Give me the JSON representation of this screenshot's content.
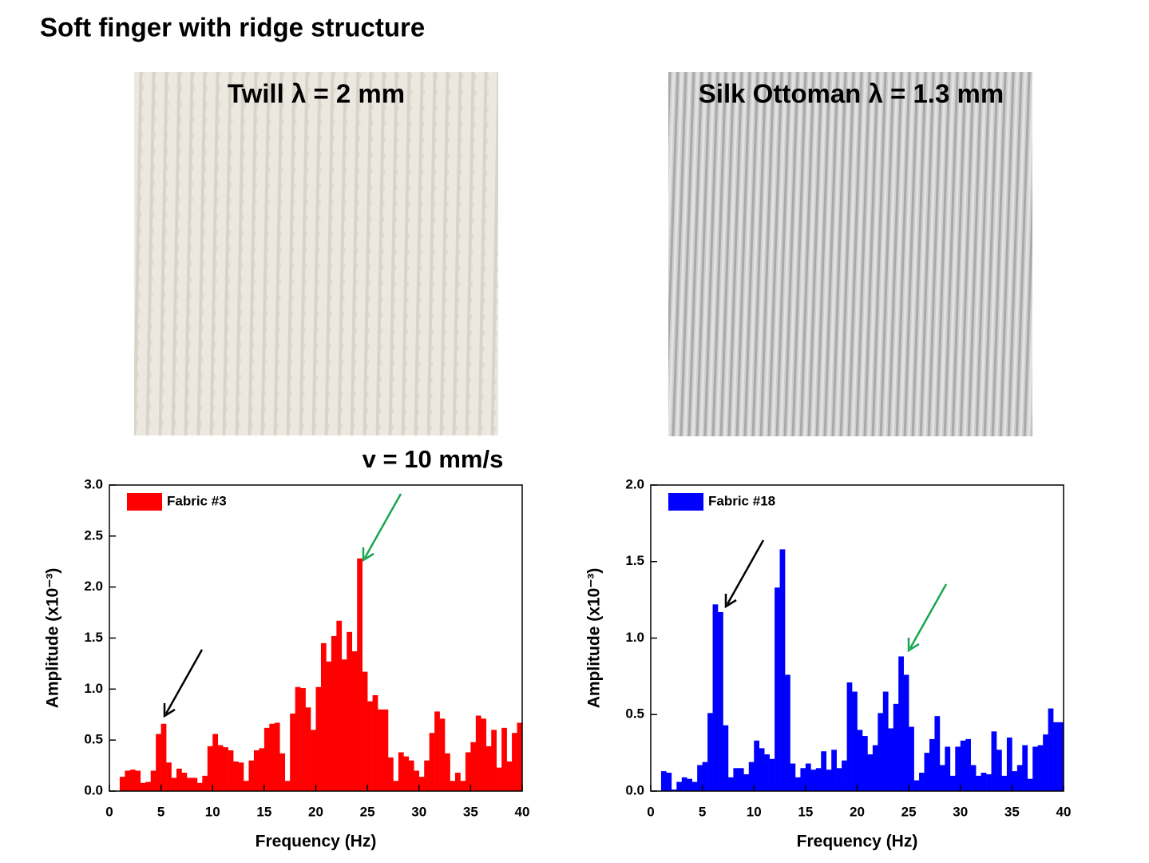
{
  "title": "Soft finger with ridge structure",
  "photos": [
    {
      "label": "Twill λ = 2 mm"
    },
    {
      "label": "Silk Ottoman λ = 1.3 mm"
    }
  ],
  "speed_label": "v = 10 mm/s",
  "chart_data": [
    {
      "type": "histogram",
      "xlabel": "Frequency (Hz)",
      "ylabel": "Amplitude (x10⁻³)",
      "series": [
        {
          "name": "Fabric #3",
          "color": "#ff0000"
        }
      ],
      "bins": [
        1,
        1.5,
        2,
        2.5,
        3,
        3.5,
        4,
        4.5,
        5,
        5.5,
        6,
        6.5,
        7,
        7.5,
        8,
        8.5,
        9,
        9.5,
        10,
        10.5,
        11,
        11.5,
        12,
        12.5,
        13,
        13.5,
        14,
        14.5,
        15,
        15.5,
        16,
        16.5,
        17,
        17.5,
        18,
        18.5,
        19,
        19.5,
        20,
        20.5,
        21,
        21.5,
        22,
        22.5,
        23,
        23.5,
        24,
        24.5,
        25,
        25.5,
        26,
        26.5,
        27,
        27.5,
        28,
        28.5,
        29,
        29.5,
        30,
        30.5,
        31,
        31.5,
        32,
        32.5,
        33,
        33.5,
        34,
        34.5,
        35,
        35.5,
        36,
        36.5,
        37,
        37.5,
        38,
        38.5,
        39,
        39.5,
        40
      ],
      "values": [
        0.14,
        0.2,
        0.21,
        0.2,
        0.08,
        0.09,
        0.2,
        0.56,
        0.66,
        0.28,
        0.13,
        0.22,
        0.18,
        0.13,
        0.13,
        0.08,
        0.15,
        0.44,
        0.56,
        0.45,
        0.43,
        0.4,
        0.29,
        0.28,
        0.1,
        0.3,
        0.4,
        0.42,
        0.62,
        0.66,
        0.67,
        0.37,
        0.1,
        0.76,
        1.02,
        1.01,
        0.82,
        0.6,
        1.02,
        1.45,
        1.27,
        1.52,
        1.67,
        1.29,
        1.56,
        1.37,
        2.28,
        1.17,
        0.88,
        0.94,
        0.8,
        0.8,
        0.33,
        0.1,
        0.38,
        0.34,
        0.3,
        0.2,
        0.14,
        0.3,
        0.57,
        0.78,
        0.71,
        0.37,
        0.1,
        0.18,
        0.1,
        0.38,
        0.48,
        0.74,
        0.71,
        0.44,
        0.6,
        0.23,
        0.62,
        0.29,
        0.57,
        0.67
      ],
      "xlim": [
        0,
        40
      ],
      "xticks": [
        0,
        5,
        10,
        15,
        20,
        25,
        30,
        35,
        40
      ],
      "ylim": [
        0,
        3
      ],
      "yticks": [
        {
          "value": 0,
          "label": "0.0"
        },
        0.5,
        {
          "value": 1,
          "label": "1.0"
        },
        1.5,
        {
          "value": 2,
          "label": "2.0"
        },
        2.5,
        {
          "value": 3,
          "label": "3.0"
        }
      ]
    },
    {
      "type": "histogram",
      "xlabel": "Frequency (Hz)",
      "ylabel": "Amplitude (x10⁻³)",
      "series": [
        {
          "name": "Fabric #18",
          "color": "#0000ff"
        }
      ],
      "bins": [
        1,
        1.5,
        2,
        2.5,
        3,
        3.5,
        4,
        4.5,
        5,
        5.5,
        6,
        6.5,
        7,
        7.5,
        8,
        8.5,
        9,
        9.5,
        10,
        10.5,
        11,
        11.5,
        12,
        12.5,
        13,
        13.5,
        14,
        14.5,
        15,
        15.5,
        16,
        16.5,
        17,
        17.5,
        18,
        18.5,
        19,
        19.5,
        20,
        20.5,
        21,
        21.5,
        22,
        22.5,
        23,
        23.5,
        24,
        24.5,
        25,
        25.5,
        26,
        26.5,
        27,
        27.5,
        28,
        28.5,
        29,
        29.5,
        30,
        30.5,
        31,
        31.5,
        32,
        32.5,
        33,
        33.5,
        34,
        34.5,
        35,
        35.5,
        36,
        36.5,
        37,
        37.5,
        38,
        38.5,
        39,
        39.5,
        40
      ],
      "values": [
        0.13,
        0.12,
        0.01,
        0.06,
        0.09,
        0.08,
        0.06,
        0.17,
        0.19,
        0.51,
        1.22,
        1.17,
        0.43,
        0.09,
        0.15,
        0.15,
        0.11,
        0.19,
        0.33,
        0.28,
        0.24,
        0.21,
        1.33,
        1.58,
        0.76,
        0.18,
        0.09,
        0.15,
        0.18,
        0.14,
        0.15,
        0.26,
        0.14,
        0.27,
        0.15,
        0.2,
        0.71,
        0.65,
        0.4,
        0.36,
        0.24,
        0.3,
        0.51,
        0.65,
        0.41,
        0.57,
        0.88,
        0.76,
        0.42,
        0.07,
        0.12,
        0.25,
        0.34,
        0.49,
        0.17,
        0.29,
        0.1,
        0.29,
        0.33,
        0.34,
        0.17,
        0.1,
        0.12,
        0.11,
        0.39,
        0.27,
        0.1,
        0.35,
        0.13,
        0.17,
        0.3,
        0.08,
        0.29,
        0.3,
        0.37,
        0.54,
        0.45,
        0.45
      ],
      "xlim": [
        0,
        40
      ],
      "xticks": [
        0,
        5,
        10,
        15,
        20,
        25,
        30,
        35,
        40
      ],
      "ylim": [
        0,
        2
      ],
      "yticks": [
        {
          "value": 0,
          "label": "0.0"
        },
        0.5,
        {
          "value": 1,
          "label": "1.0"
        },
        1.5,
        {
          "value": 2,
          "label": "2.0"
        }
      ]
    }
  ]
}
